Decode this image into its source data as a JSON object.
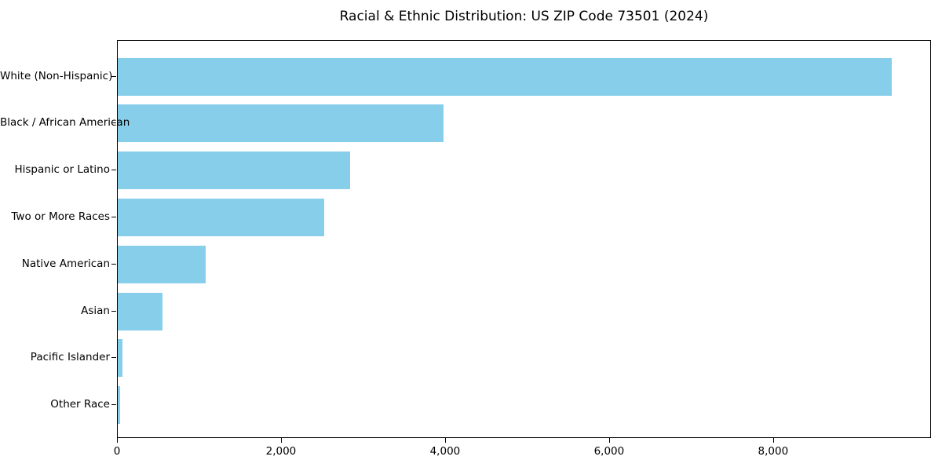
{
  "chart_data": {
    "type": "bar",
    "orientation": "horizontal",
    "title": "Racial & Ethnic Distribution: US ZIP Code 73501 (2024)",
    "categories": [
      "White (Non-Hispanic)",
      "Black / African American",
      "Hispanic or Latino",
      "Two or More Races",
      "Native American",
      "Asian",
      "Pacific Islander",
      "Other Race"
    ],
    "values": [
      9440,
      3970,
      2830,
      2515,
      1070,
      545,
      55,
      25
    ],
    "xlabel": "",
    "ylabel": "",
    "xlim": [
      0,
      9925
    ],
    "xticks": [
      0,
      2000,
      4000,
      6000,
      8000
    ],
    "xtick_labels": [
      "0",
      "2,000",
      "4,000",
      "6,000",
      "8,000"
    ],
    "bar_color": "#87ceeb",
    "axis_color": "#000000",
    "background_color": "#ffffff",
    "grid": false,
    "legend": false,
    "value_labels": false
  }
}
